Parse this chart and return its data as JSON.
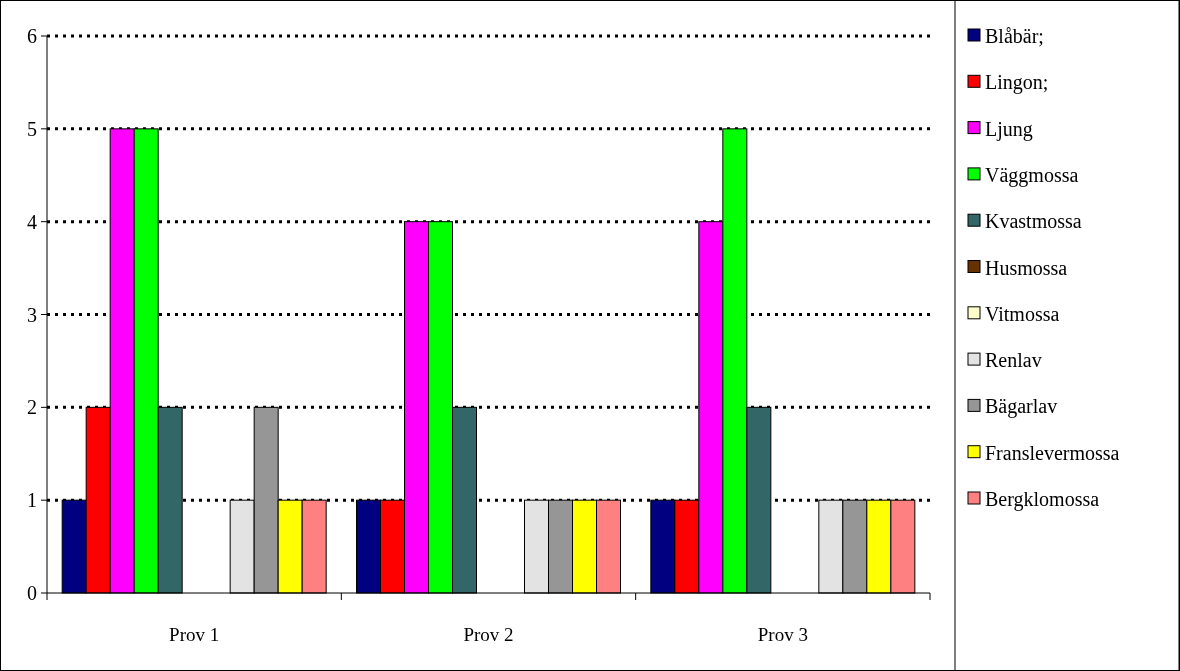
{
  "chart_data": {
    "type": "bar",
    "categories": [
      "Prov 1",
      "Prov 2",
      "Prov 3"
    ],
    "series": [
      {
        "name": "Blåbär;",
        "color": "#000080",
        "values": [
          1,
          1,
          1
        ]
      },
      {
        "name": "Lingon;",
        "color": "#ff0000",
        "values": [
          2,
          1,
          1
        ]
      },
      {
        "name": "Ljung",
        "color": "#ff00ff",
        "values": [
          5,
          4,
          4
        ]
      },
      {
        "name": "Väggmossa",
        "color": "#00ff00",
        "values": [
          5,
          4,
          5
        ]
      },
      {
        "name": "Kvastmossa",
        "color": "#336666",
        "values": [
          2,
          2,
          2
        ]
      },
      {
        "name": "Husmossa",
        "color": "#663300",
        "values": [
          null,
          null,
          null
        ]
      },
      {
        "name": "Vitmossa",
        "color": "#ffffcc",
        "values": [
          null,
          null,
          null
        ]
      },
      {
        "name": "Renlav",
        "color": "#e3e3e3",
        "values": [
          1,
          1,
          1
        ]
      },
      {
        "name": "Bägarlav",
        "color": "#969696",
        "values": [
          2,
          1,
          1
        ]
      },
      {
        "name": "Franslevermossa",
        "color": "#ffff00",
        "values": [
          1,
          1,
          1
        ]
      },
      {
        "name": "Bergklomossa",
        "color": "#ff8080",
        "values": [
          1,
          1,
          1
        ]
      }
    ],
    "ylim": [
      0,
      6
    ],
    "yticks": [
      0,
      1,
      2,
      3,
      4,
      5,
      6
    ],
    "grid": "y",
    "legend": "right"
  }
}
